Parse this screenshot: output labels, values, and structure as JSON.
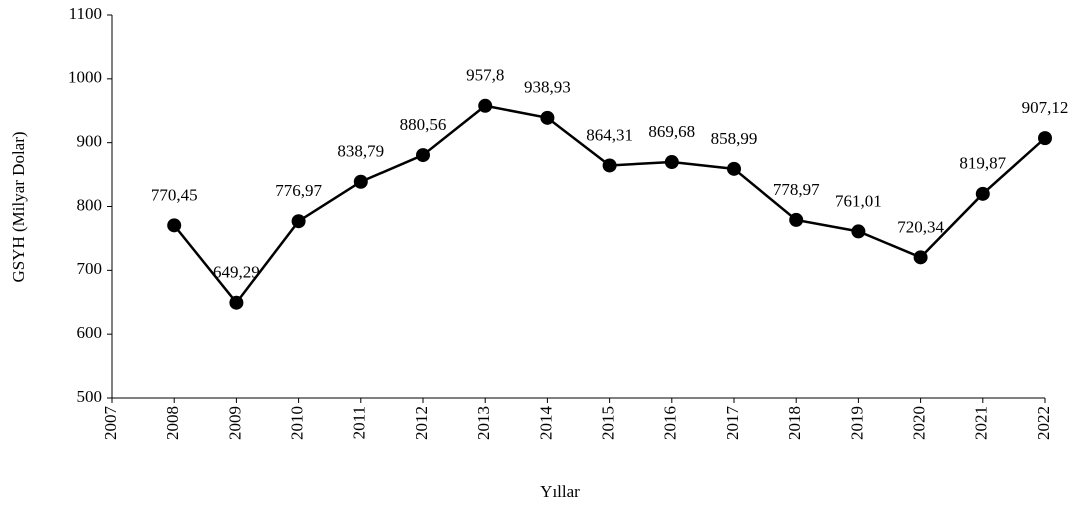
{
  "chart_data": {
    "type": "line",
    "x_label": "Yıllar",
    "y_label": "GSYH (Milyar Dolar)",
    "x": [
      2008,
      2009,
      2010,
      2011,
      2012,
      2013,
      2014,
      2015,
      2016,
      2017,
      2018,
      2019,
      2020,
      2021,
      2022
    ],
    "series": [
      {
        "color": "#000000",
        "values": [
          770.45,
          649.29,
          776.97,
          838.79,
          880.56,
          957.8,
          938.93,
          864.31,
          869.68,
          858.99,
          778.97,
          761.01,
          720.34,
          819.87,
          907.12
        ],
        "value_labels": [
          "770,45",
          "649,29",
          "776,97",
          "838,79",
          "880,56",
          "957,8",
          "938,93",
          "864,31",
          "869,68",
          "858,99",
          "778,97",
          "761,01",
          "720,34",
          "819,87",
          "907,12"
        ]
      }
    ],
    "xlim": [
      2007,
      2022
    ],
    "xticks": [
      2007,
      2008,
      2009,
      2010,
      2011,
      2012,
      2013,
      2014,
      2015,
      2016,
      2017,
      2018,
      2019,
      2020,
      2021,
      2022
    ],
    "ylim": [
      500,
      1100
    ],
    "yticks": [
      500,
      600,
      700,
      800,
      900,
      1000,
      1100
    ]
  }
}
